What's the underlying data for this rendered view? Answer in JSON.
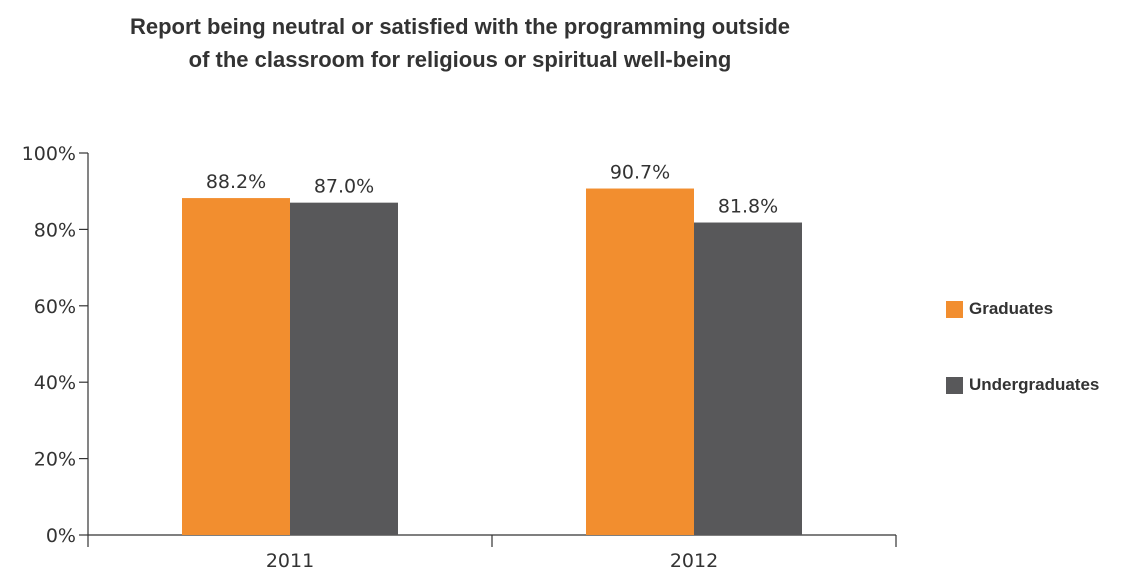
{
  "chart_data": {
    "type": "bar",
    "title": "Report being neutral or satisfied with the programming outside of the classroom for religious or spiritual well-being",
    "title_lines": [
      "Report being neutral or satisfied with the programming outside",
      "of the classroom for religious or spiritual well-being"
    ],
    "categories": [
      "2011",
      "2012"
    ],
    "series": [
      {
        "name": "Graduates",
        "values": [
          88.2,
          90.7
        ],
        "labels": [
          "88.2%",
          "90.7%"
        ],
        "color": "#f28e2f"
      },
      {
        "name": "Undergraduates",
        "values": [
          87.0,
          81.8
        ],
        "labels": [
          "87.0%",
          "81.8%"
        ],
        "color": "#58585a"
      }
    ],
    "ylim": [
      0,
      100
    ],
    "yticks": [
      {
        "value": 0,
        "label": "0%"
      },
      {
        "value": 20,
        "label": "20%"
      },
      {
        "value": 40,
        "label": "40%"
      },
      {
        "value": 60,
        "label": "60%"
      },
      {
        "value": 80,
        "label": "80%"
      },
      {
        "value": 100,
        "label": "100%"
      }
    ],
    "xlabel": "",
    "ylabel": "",
    "grid": false,
    "legend_position": "right"
  }
}
